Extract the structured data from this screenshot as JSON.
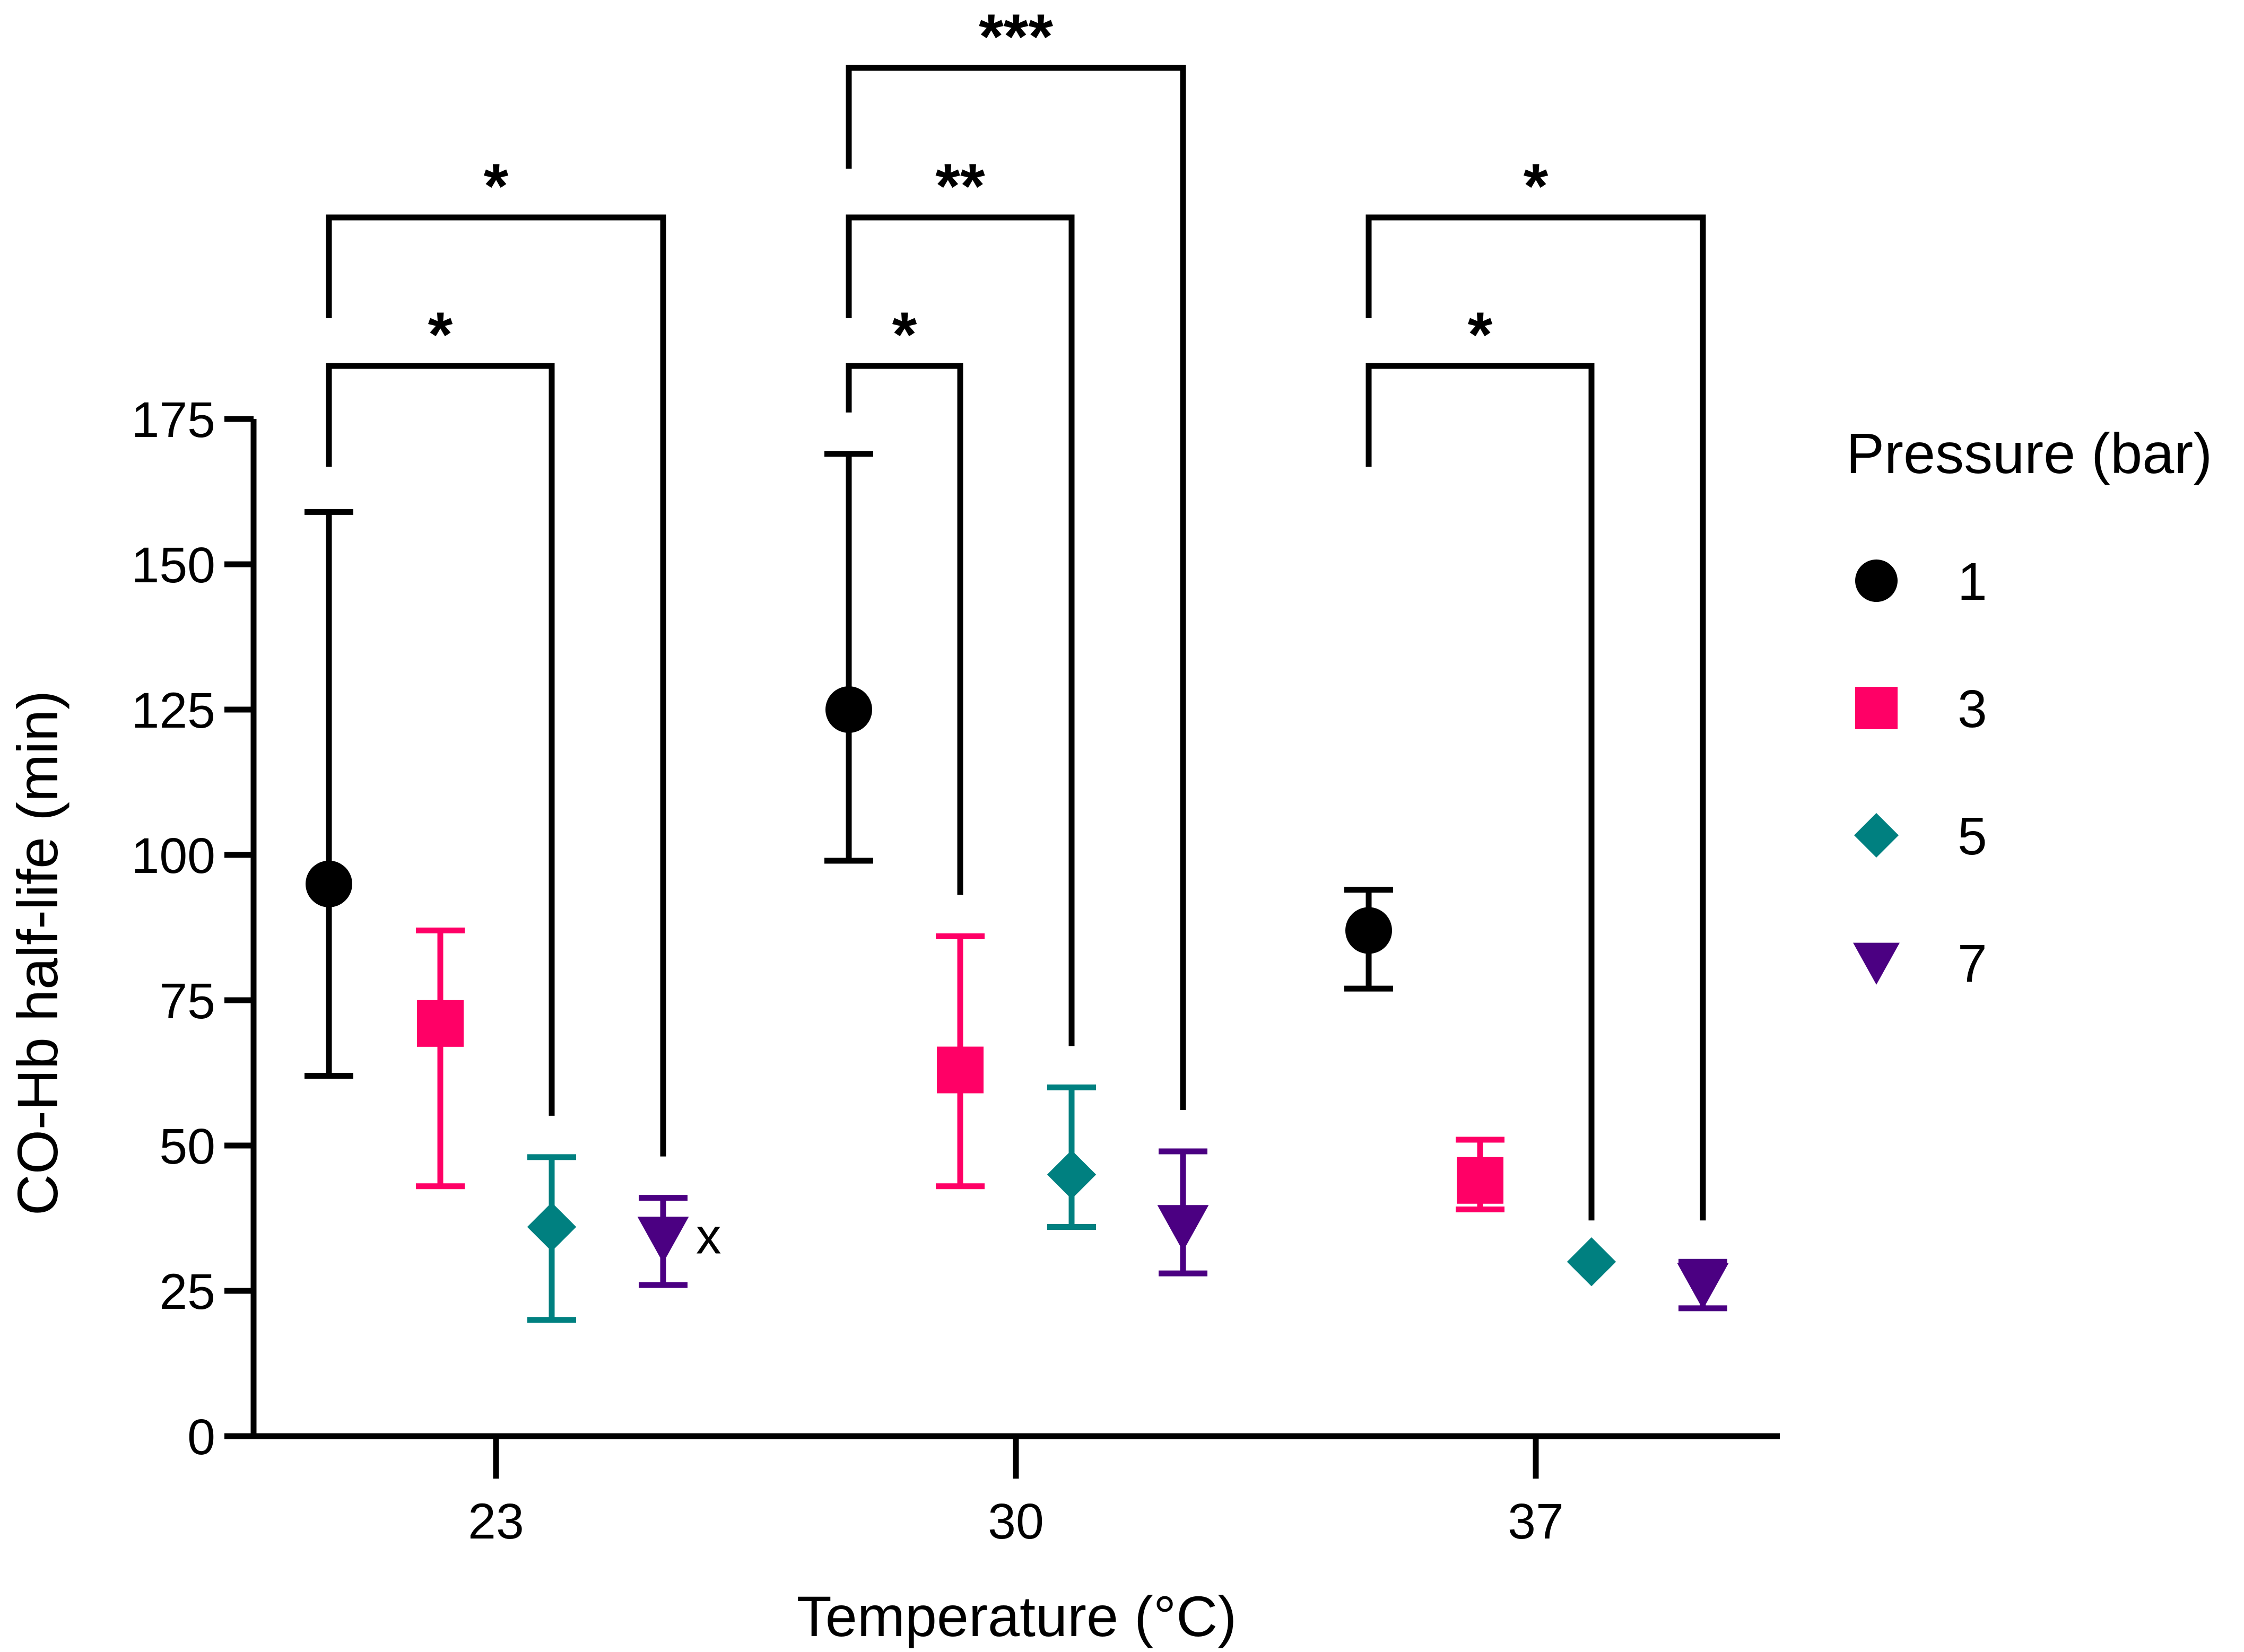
{
  "chart_data": {
    "type": "scatter",
    "xlabel": "Temperature (°C)",
    "ylabel": "CO-Hb half-life (min)",
    "categories": [
      "23",
      "30",
      "37"
    ],
    "ylim": [
      0,
      175
    ],
    "yticks": [
      0,
      25,
      50,
      75,
      100,
      125,
      150,
      175
    ],
    "legend": {
      "title": "Pressure (bar)",
      "placement": "right"
    },
    "series": [
      {
        "name": "1",
        "marker": "circle",
        "color": "#000000",
        "values": [
          {
            "category": "23",
            "y": 95,
            "err_low": 62,
            "err_high": 159
          },
          {
            "category": "30",
            "y": 125,
            "err_low": 99,
            "err_high": 169
          },
          {
            "category": "37",
            "y": 87,
            "err_low": 77,
            "err_high": 94
          }
        ]
      },
      {
        "name": "3",
        "marker": "square",
        "color": "#FF0066",
        "values": [
          {
            "category": "23",
            "y": 71,
            "err_low": 43,
            "err_high": 87
          },
          {
            "category": "30",
            "y": 63,
            "err_low": 43,
            "err_high": 86
          },
          {
            "category": "37",
            "y": 44,
            "err_low": 39,
            "err_high": 51
          }
        ]
      },
      {
        "name": "5",
        "marker": "diamond",
        "color": "#008080",
        "values": [
          {
            "category": "23",
            "y": 36,
            "err_low": 20,
            "err_high": 48
          },
          {
            "category": "30",
            "y": 45,
            "err_low": 36,
            "err_high": 60
          },
          {
            "category": "37",
            "y": 30,
            "err_low": 30,
            "err_high": 30
          }
        ]
      },
      {
        "name": "7",
        "marker": "triangle-down",
        "color": "#4B0082",
        "values": [
          {
            "category": "23",
            "y": 34,
            "err_low": 26,
            "err_high": 41,
            "annotation": "x"
          },
          {
            "category": "30",
            "y": 36,
            "err_low": 28,
            "err_high": 49
          },
          {
            "category": "37",
            "y": 26,
            "err_low": 22,
            "err_high": 30
          }
        ]
      }
    ],
    "significance": [
      {
        "category": "23",
        "from": "1",
        "to": "5",
        "label": "*"
      },
      {
        "category": "23",
        "from": "1",
        "to": "7",
        "label": "*"
      },
      {
        "category": "30",
        "from": "1",
        "to": "3",
        "label": "*"
      },
      {
        "category": "30",
        "from": "1",
        "to": "5",
        "label": "**"
      },
      {
        "category": "30",
        "from": "1",
        "to": "7",
        "label": "***"
      },
      {
        "category": "37",
        "from": "1",
        "to": "5",
        "label": "*"
      },
      {
        "category": "37",
        "from": "1",
        "to": "7",
        "label": "*"
      }
    ],
    "grid": false
  }
}
